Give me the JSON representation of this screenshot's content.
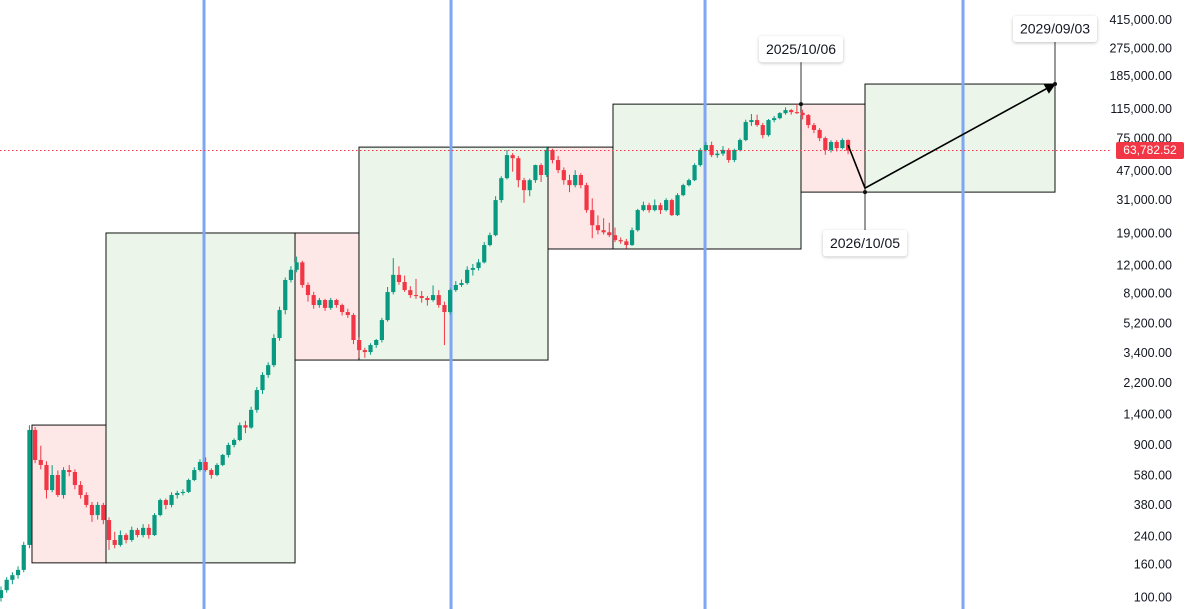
{
  "chart_data": {
    "type": "candlestick",
    "log_scale": true,
    "ylim": [
      85.3,
      560000
    ],
    "yticks": [
      {
        "value": 415000,
        "label": "415,000.00"
      },
      {
        "value": 275000,
        "label": "275,000.00"
      },
      {
        "value": 185000,
        "label": "185,000.00"
      },
      {
        "value": 115000,
        "label": "115,000.00"
      },
      {
        "value": 75000,
        "label": "75,000.00"
      },
      {
        "value": 47000,
        "label": "47,000.00"
      },
      {
        "value": 31000,
        "label": "31,000.00"
      },
      {
        "value": 19000,
        "label": "19,000.00"
      },
      {
        "value": 12000,
        "label": "12,000.00"
      },
      {
        "value": 8000,
        "label": "8,000.00"
      },
      {
        "value": 5200,
        "label": "5,200.00"
      },
      {
        "value": 3400,
        "label": "3,400.00"
      },
      {
        "value": 2200,
        "label": "2,200.00"
      },
      {
        "value": 1400,
        "label": "1,400.00"
      },
      {
        "value": 900,
        "label": "900.00"
      },
      {
        "value": 580,
        "label": "580.00"
      },
      {
        "value": 380,
        "label": "380.00"
      },
      {
        "value": 240,
        "label": "240.00"
      },
      {
        "value": 160,
        "label": "160.00"
      },
      {
        "value": 100,
        "label": "100.00"
      }
    ],
    "up_color": "#089981",
    "down_color": "#f23645",
    "ohlc": [
      [
        100,
        118,
        95,
        112
      ],
      [
        112,
        135,
        108,
        130
      ],
      [
        130,
        145,
        122,
        139
      ],
      [
        139,
        158,
        132,
        150
      ],
      [
        150,
        225,
        145,
        215
      ],
      [
        215,
        1210,
        205,
        1130
      ],
      [
        1130,
        1180,
        700,
        733
      ],
      [
        733,
        900,
        640,
        682
      ],
      [
        682,
        720,
        420,
        475
      ],
      [
        475,
        680,
        460,
        590
      ],
      [
        590,
        630,
        430,
        442
      ],
      [
        442,
        660,
        420,
        634
      ],
      [
        634,
        680,
        580,
        616
      ],
      [
        616,
        640,
        480,
        511
      ],
      [
        511,
        540,
        420,
        442
      ],
      [
        442,
        460,
        370,
        383
      ],
      [
        383,
        400,
        300,
        331
      ],
      [
        331,
        400,
        310,
        383
      ],
      [
        383,
        395,
        290,
        308
      ],
      [
        308,
        320,
        200,
        231
      ],
      [
        231,
        260,
        205,
        215
      ],
      [
        215,
        265,
        210,
        248
      ],
      [
        248,
        255,
        220,
        231
      ],
      [
        231,
        280,
        225,
        267
      ],
      [
        267,
        275,
        240,
        248
      ],
      [
        248,
        290,
        240,
        275
      ],
      [
        275,
        290,
        235,
        248
      ],
      [
        248,
        340,
        245,
        331
      ],
      [
        331,
        420,
        325,
        411
      ],
      [
        411,
        420,
        360,
        383
      ],
      [
        383,
        460,
        370,
        442
      ],
      [
        442,
        470,
        420,
        455
      ],
      [
        455,
        480,
        440,
        462
      ],
      [
        462,
        560,
        455,
        549
      ],
      [
        549,
        660,
        540,
        634
      ],
      [
        634,
        740,
        620,
        712
      ],
      [
        712,
        760,
        620,
        634
      ],
      [
        634,
        650,
        560,
        590
      ],
      [
        590,
        700,
        580,
        682
      ],
      [
        682,
        800,
        670,
        788
      ],
      [
        788,
        940,
        760,
        910
      ],
      [
        910,
        1000,
        880,
        978
      ],
      [
        978,
        1260,
        960,
        1210
      ],
      [
        1210,
        1290,
        1080,
        1170
      ],
      [
        1170,
        1580,
        1150,
        1510
      ],
      [
        1510,
        2100,
        1450,
        2010
      ],
      [
        2010,
        2600,
        1900,
        2500
      ],
      [
        2500,
        3000,
        2400,
        2880
      ],
      [
        2880,
        4500,
        2800,
        4260
      ],
      [
        4260,
        6700,
        4100,
        6380
      ],
      [
        6380,
        10200,
        6000,
        9840
      ],
      [
        9840,
        12000,
        9500,
        11400
      ],
      [
        11400,
        13800,
        11000,
        12700
      ],
      [
        12700,
        13000,
        8800,
        9160
      ],
      [
        9160,
        9500,
        7200,
        7920
      ],
      [
        7920,
        8300,
        6500,
        6860
      ],
      [
        6860,
        7600,
        6600,
        7370
      ],
      [
        7370,
        7500,
        6300,
        6580
      ],
      [
        6580,
        7600,
        6400,
        7370
      ],
      [
        7370,
        7500,
        6600,
        6860
      ],
      [
        6860,
        7000,
        5900,
        6200
      ],
      [
        6200,
        6500,
        5700,
        5940
      ],
      [
        5940,
        6100,
        3900,
        4140
      ],
      [
        4140,
        4300,
        3200,
        3580
      ],
      [
        3580,
        3700,
        3200,
        3480
      ],
      [
        3480,
        3950,
        3350,
        3850
      ],
      [
        3850,
        4200,
        3700,
        4140
      ],
      [
        4140,
        5700,
        4000,
        5520
      ],
      [
        5520,
        8900,
        5400,
        8270
      ],
      [
        8270,
        13500,
        8000,
        10600
      ],
      [
        10600,
        12000,
        9200,
        9560
      ],
      [
        9560,
        10500,
        8300,
        8510
      ],
      [
        8510,
        9000,
        7600,
        7920
      ],
      [
        7920,
        10000,
        7500,
        7810
      ],
      [
        7810,
        8400,
        7100,
        7590
      ],
      [
        7590,
        7800,
        6800,
        7370
      ],
      [
        7370,
        9100,
        7200,
        7920
      ],
      [
        7920,
        8500,
        6600,
        6860
      ],
      [
        6860,
        7200,
        3850,
        6200
      ],
      [
        6200,
        8700,
        6000,
        8510
      ],
      [
        8510,
        9700,
        8300,
        9160
      ],
      [
        9160,
        9900,
        8900,
        9420
      ],
      [
        9420,
        12000,
        9200,
        11400
      ],
      [
        11400,
        12400,
        10500,
        11700
      ],
      [
        11700,
        13300,
        11300,
        12700
      ],
      [
        12700,
        17000,
        12500,
        16300
      ],
      [
        16300,
        19500,
        16000,
        18800
      ],
      [
        18800,
        33000,
        18500,
        31200
      ],
      [
        31200,
        44000,
        30000,
        42800
      ],
      [
        42800,
        64300,
        42000,
        59700
      ],
      [
        59700,
        61500,
        47000,
        57100
      ],
      [
        57100,
        59000,
        37500,
        41600
      ],
      [
        41600,
        43000,
        30000,
        36000
      ],
      [
        36000,
        42500,
        33000,
        41600
      ],
      [
        41600,
        52000,
        40000,
        51700
      ],
      [
        51700,
        53000,
        40500,
        44800
      ],
      [
        44800,
        67000,
        43500,
        64300
      ],
      [
        64300,
        65500,
        53000,
        55600
      ],
      [
        55600,
        59000,
        46000,
        48100
      ],
      [
        48100,
        50000,
        39000,
        41600
      ],
      [
        41600,
        45000,
        35000,
        38700
      ],
      [
        38700,
        48000,
        37500,
        44800
      ],
      [
        44800,
        46000,
        37000,
        38700
      ],
      [
        38700,
        40000,
        26000,
        27000
      ],
      [
        27000,
        32000,
        18000,
        21700
      ],
      [
        21700,
        25000,
        19000,
        20200
      ],
      [
        20200,
        24000,
        19000,
        19600
      ],
      [
        19600,
        22500,
        18300,
        18800
      ],
      [
        18800,
        21000,
        17000,
        17500
      ],
      [
        17500,
        18200,
        16600,
        17200
      ],
      [
        17200,
        17800,
        15500,
        16300
      ],
      [
        16300,
        21000,
        16100,
        20200
      ],
      [
        20200,
        27500,
        19800,
        27000
      ],
      [
        27000,
        30500,
        26500,
        29000
      ],
      [
        29000,
        30000,
        26000,
        27000
      ],
      [
        27000,
        31500,
        26500,
        29000
      ],
      [
        29000,
        30000,
        25500,
        27000
      ],
      [
        27000,
        32000,
        26500,
        31200
      ],
      [
        31200,
        31800,
        24800,
        25100
      ],
      [
        25100,
        34500,
        24800,
        33500
      ],
      [
        33500,
        39500,
        33000,
        38700
      ],
      [
        38700,
        42500,
        38000,
        41600
      ],
      [
        41600,
        53000,
        41000,
        51700
      ],
      [
        51700,
        66000,
        50500,
        64300
      ],
      [
        64300,
        72000,
        63000,
        69000
      ],
      [
        69000,
        72500,
        58000,
        59700
      ],
      [
        59700,
        64000,
        57500,
        61000
      ],
      [
        61000,
        68000,
        59000,
        64300
      ],
      [
        64300,
        66000,
        53500,
        55600
      ],
      [
        55600,
        65500,
        54000,
        64300
      ],
      [
        64300,
        76000,
        63000,
        74200
      ],
      [
        74200,
        99500,
        73000,
        96200
      ],
      [
        96200,
        108000,
        91000,
        99000
      ],
      [
        99000,
        107000,
        90000,
        92100
      ],
      [
        92100,
        95000,
        76000,
        79700
      ],
      [
        79700,
        100500,
        78000,
        99000
      ],
      [
        99000,
        105000,
        96000,
        101800
      ],
      [
        101800,
        111000,
        100000,
        109400
      ],
      [
        109400,
        119000,
        107000,
        114300
      ],
      [
        114300,
        116000,
        107000,
        111000
      ],
      [
        111000,
        124600,
        108000,
        110000
      ],
      [
        110000,
        115000,
        100000,
        106400
      ],
      [
        106400,
        108000,
        88000,
        92100
      ],
      [
        92100,
        95000,
        82000,
        85800
      ],
      [
        85800,
        88000,
        73000,
        76300
      ],
      [
        76300,
        78000,
        60000,
        64300
      ],
      [
        64300,
        74000,
        62000,
        72100
      ],
      [
        72100,
        74000,
        63000,
        66100
      ],
      [
        66100,
        76000,
        65000,
        74200
      ],
      [
        74200,
        75000,
        60500,
        63782.52
      ]
    ],
    "boxes": [
      {
        "from": 5.45,
        "to": 18.47,
        "low": 166,
        "high": 1213,
        "color": "#fde7e7"
      },
      {
        "from": 18.47,
        "to": 51.72,
        "low": 166,
        "high": 19400,
        "color": "#ebf5ea"
      },
      {
        "from": 51.72,
        "to": 62.97,
        "low": 3100,
        "high": 19400,
        "color": "#fde7e7"
      },
      {
        "from": 62.97,
        "to": 96.22,
        "low": 3100,
        "high": 67000,
        "color": "#ebf5ea"
      },
      {
        "from": 96.22,
        "to": 107.65,
        "low": 15400,
        "high": 67000,
        "color": "#fde7e7"
      },
      {
        "from": 107.65,
        "to": 140.72,
        "low": 15400,
        "high": 124600,
        "color": "#ebf5ea"
      },
      {
        "from": 140.72,
        "to": 151.98,
        "low": 35000,
        "high": 124600,
        "color": "#fde7e7"
      },
      {
        "from": 151.98,
        "to": 185.4,
        "low": 35000,
        "high": 166500,
        "color": "#ebf5ea"
      }
    ],
    "halvings": [
      35.71,
      79.16,
      123.84,
      169.22
    ],
    "halving_color": "#7ea6f3",
    "last_price": {
      "value": 63782.52,
      "label": "63,782.52"
    },
    "last_price_color": "#f23645",
    "projection": {
      "x": [
        149,
        151.98,
        185.4
      ],
      "y": [
        69000,
        37100,
        166500
      ]
    },
    "annotations": [
      {
        "label": "2025/10/06",
        "x": 140.72,
        "y": 124600
      },
      {
        "label": "2026/10/05",
        "x": 151.98,
        "y": 35000
      },
      {
        "label": "2029/09/03",
        "x": 185.4,
        "y": 166500
      }
    ]
  }
}
